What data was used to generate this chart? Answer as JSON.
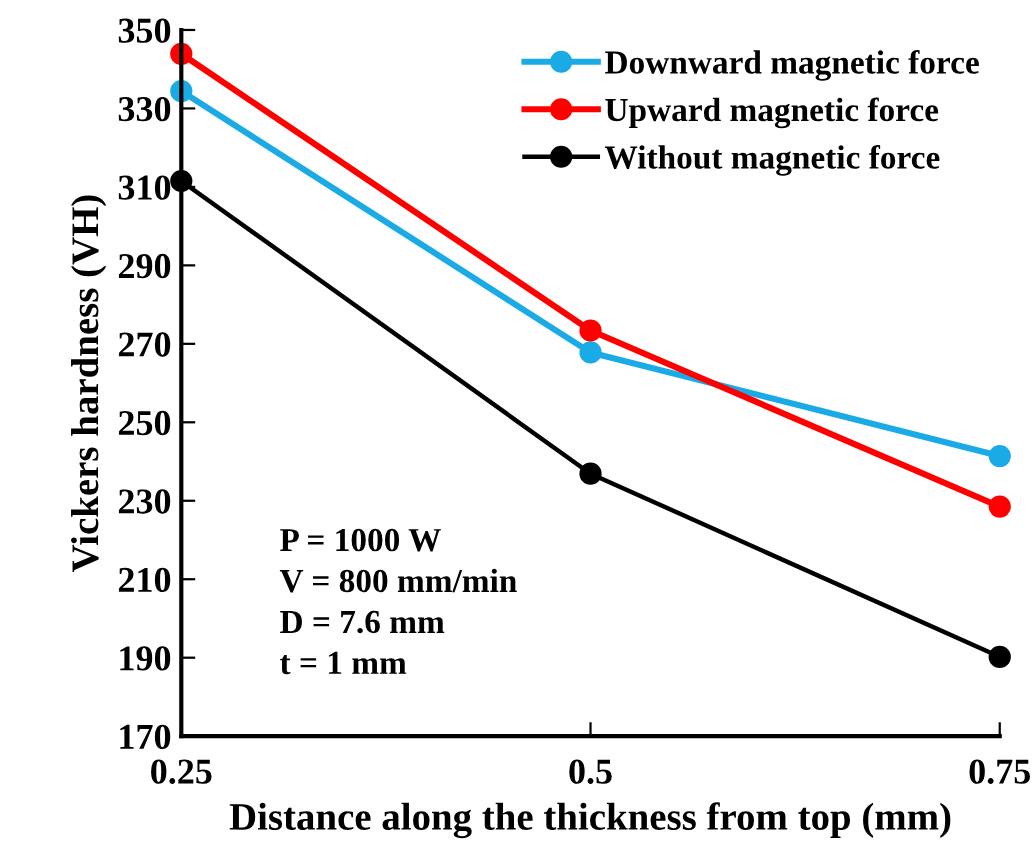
{
  "chart_data": {
    "type": "line",
    "xlabel": "Distance along the thickness from top (mm)",
    "ylabel": "Vickers hardness (VH)",
    "x": [
      0.25,
      0.5,
      0.75
    ],
    "series": [
      {
        "name": "Downward magnetic force",
        "color": "#1aabe6",
        "values": [
          334.4,
          267.8,
          241.4
        ]
      },
      {
        "name": "Upward magnetic force",
        "color": "#ff0000",
        "values": [
          343.9,
          273.4,
          228.5
        ]
      },
      {
        "name": "Without magnetic force",
        "color": "#000000",
        "values": [
          311.5,
          236.9,
          190.2
        ]
      }
    ],
    "xlim": [
      0.25,
      0.75
    ],
    "xticks": [
      0.25,
      0.5,
      0.75
    ],
    "ylim": [
      170,
      350
    ],
    "yticks": [
      170,
      190,
      210,
      230,
      250,
      270,
      290,
      310,
      330,
      350
    ],
    "marker": "circle",
    "line_style": "solid",
    "grid": false,
    "legend": "top right",
    "annotations": [
      "P = 1000 W",
      "V = 800 mm/min",
      "D = 7.6 mm",
      "t = 1 mm"
    ]
  }
}
